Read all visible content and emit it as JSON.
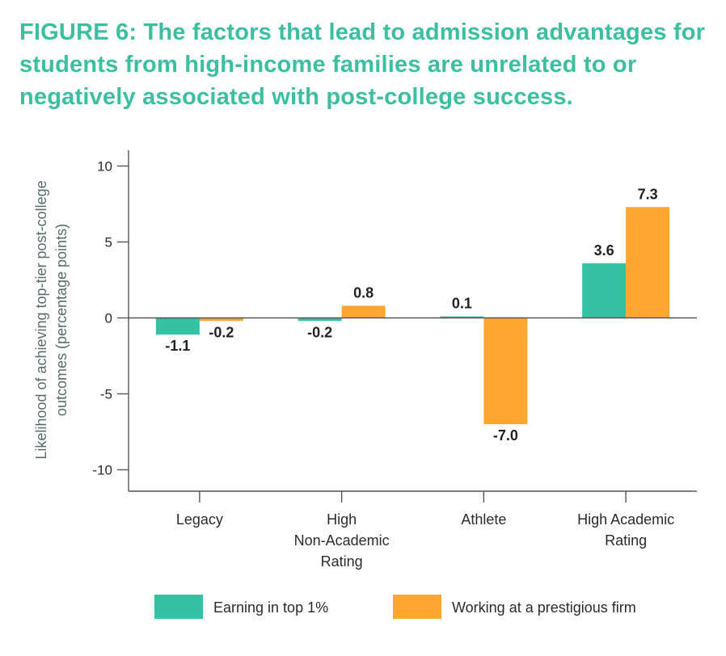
{
  "title": "FIGURE 6: The factors that lead to admission advantages for students from high-income families are unrelated to or negatively associated with post-college success.",
  "colors": {
    "title": "#3bbfa0",
    "series1": "#35c2a4",
    "series2": "#ffa630"
  },
  "chart_data": {
    "type": "bar",
    "title": "FIGURE 6: The factors that lead to admission advantages for students from high-income families are unrelated to or negatively associated with post-college success.",
    "ylabel": "Likelihood of achieving top-tier post-college outcomes (percentage points)",
    "ylabel_lines": [
      "Likelihood of achieving top-tier post-college",
      "outcomes (percentage points)"
    ],
    "xlabel": "",
    "ylim": [
      -11,
      10.5
    ],
    "yticks": [
      10,
      5,
      0,
      -5,
      -10
    ],
    "ytick_labels": [
      "10",
      "5",
      "0",
      "-5",
      "-10"
    ],
    "categories": [
      "Legacy",
      "High Non-Academic Rating",
      "Athlete",
      "High Academic Rating"
    ],
    "category_lines": [
      [
        "Legacy"
      ],
      [
        "High",
        "Non-Academic",
        "Rating"
      ],
      [
        "Athlete"
      ],
      [
        "High Academic",
        "Rating"
      ]
    ],
    "series": [
      {
        "name": "Earning in top 1%",
        "values": [
          -1.1,
          -0.2,
          0.1,
          3.6
        ],
        "labels": [
          "-1.1",
          "-0.2",
          "0.1",
          "3.6"
        ]
      },
      {
        "name": "Working at a prestigious firm",
        "values": [
          -0.2,
          0.8,
          -7.0,
          7.3
        ],
        "labels": [
          "-0.2",
          "0.8",
          "-7.0",
          "7.3"
        ]
      }
    ],
    "legend_position": "bottom",
    "grid": false
  }
}
